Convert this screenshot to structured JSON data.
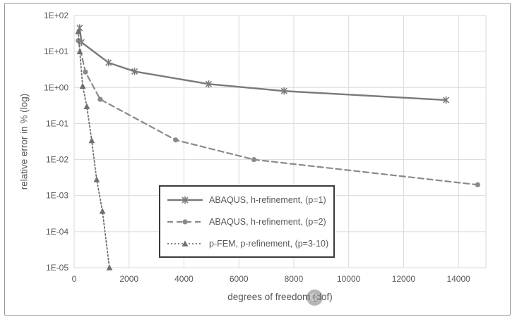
{
  "colors": {
    "grid": "#d9d9d9",
    "text": "#595959",
    "legend_border": "#3b3b3b",
    "figure_border": "#9b9b9b",
    "background": "#ffffff"
  },
  "figure": {
    "watermark_icon": "gray-circle-badge-icon"
  },
  "chart_data": {
    "type": "line",
    "x_scale": "linear",
    "y_scale": "log",
    "title": "",
    "xlabel": "degrees of freedom (dof)",
    "ylabel": "relative error in % (log)",
    "xlim": [
      0,
      15000
    ],
    "ylim": [
      1e-05,
      100
    ],
    "x_ticks": [
      0,
      2000,
      4000,
      6000,
      8000,
      10000,
      12000,
      14000
    ],
    "y_tick_labels": [
      "1E+02",
      "1E+01",
      "1E+00",
      "1E-01",
      "1E-02",
      "1E-03",
      "1E-04",
      "1E-05"
    ],
    "grid": true,
    "legend_position": "inside-lower-center",
    "series": [
      {
        "name": "ABAQUS, h-refinement, (p=1)",
        "line": "solid",
        "marker": "star",
        "color": "#7a7a7a",
        "points": [
          [
            200,
            45
          ],
          [
            270,
            18
          ],
          [
            1250,
            4.9
          ],
          [
            2200,
            2.8
          ],
          [
            4900,
            1.25
          ],
          [
            7650,
            0.8
          ],
          [
            13550,
            0.45
          ]
        ]
      },
      {
        "name": "ABAQUS, h-refinement, (p=2)",
        "line": "dashed",
        "marker": "circle",
        "color": "#8a8a8a",
        "points": [
          [
            150,
            20
          ],
          [
            410,
            2.7
          ],
          [
            950,
            0.47
          ],
          [
            3700,
            0.035
          ],
          [
            6550,
            0.01
          ],
          [
            14700,
            0.002
          ]
        ]
      },
      {
        "name": "p-FEM, p-refinement, (p=3-10)",
        "line": "dotted",
        "marker": "triangle",
        "color": "#6f6f6f",
        "points": [
          [
            150,
            36
          ],
          [
            205,
            10
          ],
          [
            310,
            1.1
          ],
          [
            460,
            0.3
          ],
          [
            640,
            0.034
          ],
          [
            820,
            0.0028
          ],
          [
            1030,
            0.00037
          ],
          [
            1285,
            1e-05
          ]
        ]
      }
    ]
  }
}
